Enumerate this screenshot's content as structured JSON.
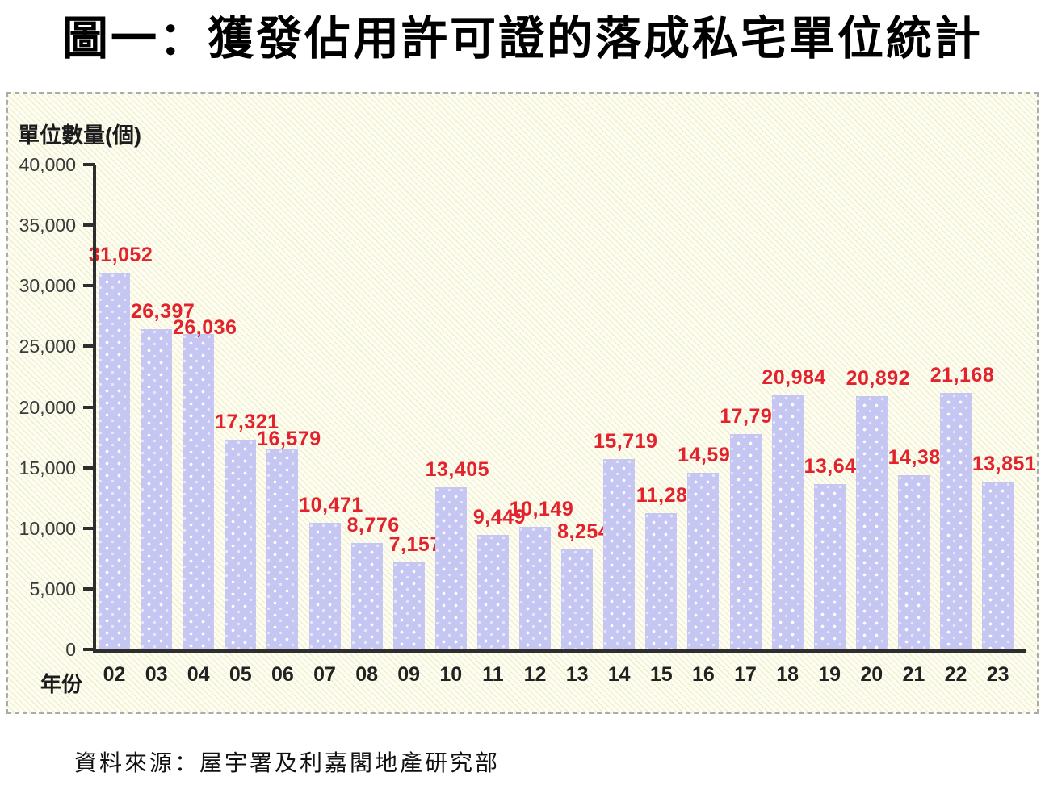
{
  "title": "圖一：獲發佔用許可證的落成私宅單位統計",
  "source_note": "資料來源：屋宇署及利嘉閣地產研究部",
  "colors": {
    "bar_fill": "#c5c6f2",
    "bar_dot": "#ffffff",
    "value_label": "#e2232d",
    "axis": "#2e2e2e",
    "panel_bg": "#fffef4",
    "panel_border": "#ababab",
    "tick_text": "#3a3a3a",
    "x_tick_text": "#222222"
  },
  "chart_data": {
    "type": "bar",
    "title": "圖一：獲發佔用許可證的落成私宅單位統計",
    "y_axis_title": "單位數量(個)",
    "x_axis_title": "年份",
    "categories": [
      "02",
      "03",
      "04",
      "05",
      "06",
      "07",
      "08",
      "09",
      "10",
      "11",
      "12",
      "13",
      "14",
      "15",
      "16",
      "17",
      "18",
      "19",
      "20",
      "21",
      "22",
      "23"
    ],
    "values": [
      31052,
      26397,
      26036,
      17321,
      16579,
      10471,
      8776,
      7157,
      13405,
      9449,
      10149,
      8254,
      15719,
      11280,
      14594,
      17791,
      20984,
      13641,
      20892,
      14387,
      21168,
      13851
    ],
    "value_labels": [
      "31,052",
      "26,397",
      "26,036",
      "17,321",
      "16,579",
      "10,471",
      "8,776",
      "7,157",
      "13,405",
      "9,449",
      "10,149",
      "8,254",
      "15,719",
      "11,280",
      "14,594",
      "17,791",
      "20,984",
      "13,641",
      "20,892",
      "14,387",
      "21,168",
      "13,851"
    ],
    "ylim": [
      0,
      40000
    ],
    "y_ticks": [
      0,
      5000,
      10000,
      15000,
      20000,
      25000,
      30000,
      35000,
      40000
    ],
    "y_tick_labels": [
      "0",
      "5,000",
      "10,000",
      "15,000",
      "20,000",
      "25,000",
      "30,000",
      "35,000",
      "40,000"
    ],
    "grid": false,
    "legend": "none",
    "label_dy": [
      0,
      0,
      14,
      0,
      10,
      0,
      0,
      0,
      0,
      0,
      0,
      0,
      0,
      0,
      0,
      0,
      0,
      0,
      0,
      0,
      0,
      0
    ]
  }
}
